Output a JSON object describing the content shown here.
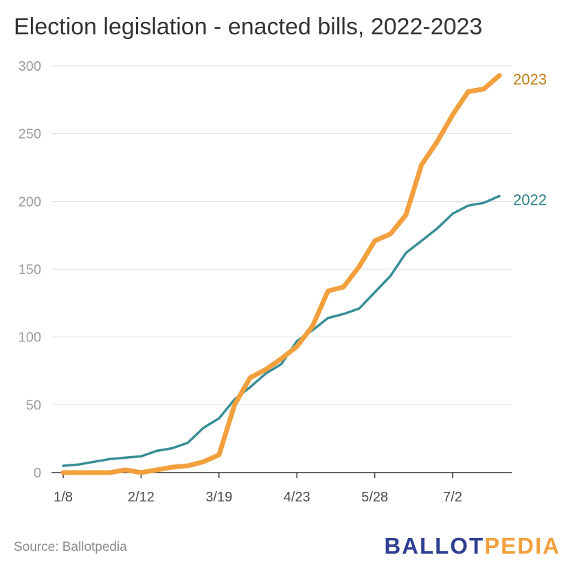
{
  "chart_data": {
    "type": "line",
    "title": "Election legislation - enacted bills, 2022-2023",
    "xlabel": "",
    "ylabel": "",
    "ylim": [
      0,
      300
    ],
    "yticks": [
      "0",
      "50",
      "100",
      "150",
      "200",
      "250",
      "300"
    ],
    "xticks": [
      {
        "label": "1/8",
        "week": 0
      },
      {
        "label": "2/12",
        "week": 5
      },
      {
        "label": "3/19",
        "week": 10
      },
      {
        "label": "4/23",
        "week": 15
      },
      {
        "label": "5/28",
        "week": 20
      },
      {
        "label": "7/2",
        "week": 25
      }
    ],
    "grid": "horizontal",
    "legend": "line-end labels",
    "series": [
      {
        "name": "2023",
        "color": "#f2a03d",
        "x": [
          0,
          1,
          2,
          3,
          4,
          5,
          6,
          7,
          8,
          9,
          10,
          11,
          12,
          13,
          14,
          15,
          16,
          17,
          18,
          19,
          20,
          21,
          22,
          23,
          24,
          25,
          26,
          27,
          28
        ],
        "values": [
          0,
          0,
          0,
          0,
          2,
          0,
          2,
          4,
          5,
          8,
          13,
          50,
          70,
          76,
          84,
          93,
          108,
          134,
          137,
          152,
          171,
          176,
          190,
          227,
          244,
          264,
          281,
          283,
          293
        ]
      },
      {
        "name": "2022",
        "color": "#388e95",
        "x": [
          0,
          1,
          2,
          3,
          4,
          5,
          6,
          7,
          8,
          9,
          10,
          11,
          12,
          13,
          14,
          15,
          16,
          17,
          18,
          19,
          20,
          21,
          22,
          23,
          24,
          25,
          26,
          27,
          28
        ],
        "values": [
          5,
          6,
          8,
          10,
          11,
          12,
          16,
          18,
          22,
          33,
          40,
          54,
          63,
          73,
          80,
          97,
          105,
          114,
          117,
          121,
          133,
          145,
          162,
          171,
          180,
          191,
          197,
          199,
          204
        ]
      }
    ]
  },
  "footer": {
    "source": "Source: Ballotpedia",
    "logo_part1": "BALLOT",
    "logo_part2": "PEDIA"
  }
}
